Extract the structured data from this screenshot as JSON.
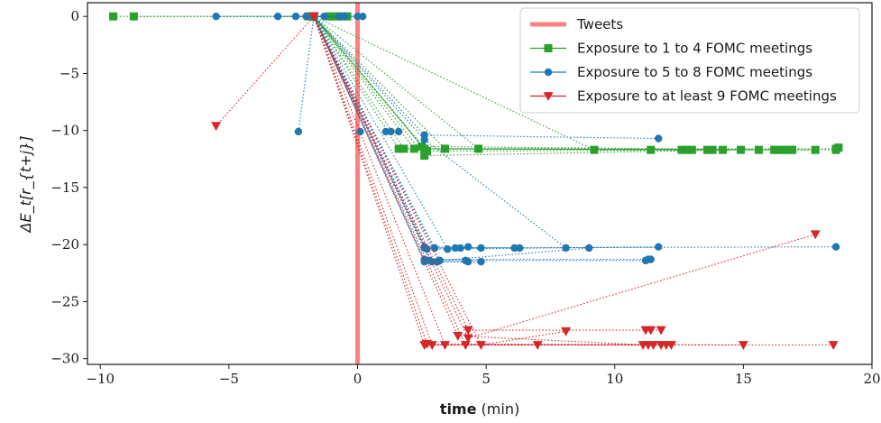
{
  "chart_data": {
    "type": "scatter",
    "xlabel_bold": "time",
    "xlabel_rest": " (min)",
    "ylabel": "ΔE_t[r_{t+j}]",
    "xlim": [
      -10.5,
      20
    ],
    "ylim": [
      -30.5,
      1.2
    ],
    "xticks": [
      -10,
      -5,
      0,
      5,
      10,
      15,
      20
    ],
    "yticks": [
      0,
      -5,
      -10,
      -15,
      -20,
      -25,
      -30
    ],
    "xtick_labels": [
      "−10",
      "−5",
      "0",
      "5",
      "10",
      "15",
      "20"
    ],
    "ytick_labels": [
      "0",
      "−5",
      "−10",
      "−15",
      "−20",
      "−25",
      "−30"
    ],
    "legend_position": "upper-right",
    "tweet_x": 0,
    "tweet_name": "Tweets",
    "tweet_color": "#ff8080",
    "series": [
      {
        "name": "Exposure to 1 to 4 FOMC meetings",
        "color": "#2ca02c",
        "marker": "square",
        "paths": [
          [
            [
              -9.5,
              0
            ],
            [
              -1.7,
              0
            ],
            [
              1.6,
              -11.6
            ],
            [
              18.6,
              -11.6
            ]
          ],
          [
            [
              -8.7,
              0
            ],
            [
              -1.7,
              0
            ],
            [
              1.8,
              -11.6
            ],
            [
              18.6,
              -11.7
            ]
          ],
          [
            [
              -1.9,
              0
            ],
            [
              -1.7,
              0
            ],
            [
              2.2,
              -11.6
            ],
            [
              17.8,
              -11.7
            ]
          ],
          [
            [
              -1.1,
              0
            ],
            [
              -1.7,
              0
            ],
            [
              2.5,
              -11.4
            ],
            [
              16.9,
              -11.7
            ]
          ],
          [
            [
              -0.8,
              0
            ],
            [
              -1.7,
              0
            ],
            [
              2.6,
              -11.6
            ],
            [
              16.5,
              -11.7
            ]
          ],
          [
            [
              -0.6,
              0
            ],
            [
              -1.7,
              0
            ],
            [
              2.7,
              -11.8
            ],
            [
              15.6,
              -11.7
            ]
          ],
          [
            [
              -0.4,
              0
            ],
            [
              -1.7,
              0
            ],
            [
              2.6,
              -12.2
            ],
            [
              14.9,
              -11.7
            ]
          ],
          [
            [
              -1.7,
              0
            ],
            [
              3.4,
              -11.6
            ],
            [
              13.6,
              -11.7
            ]
          ],
          [
            [
              -1.7,
              0
            ],
            [
              4.7,
              -11.6
            ],
            [
              12.6,
              -11.7
            ]
          ],
          [
            [
              -1.7,
              0
            ],
            [
              9.2,
              -11.7
            ],
            [
              11.4,
              -11.7
            ]
          ]
        ],
        "extra_points": [
          [
            12.8,
            -11.7
          ],
          [
            13.0,
            -11.7
          ],
          [
            13.8,
            -11.7
          ],
          [
            14.2,
            -11.7
          ],
          [
            16.2,
            -11.7
          ],
          [
            16.3,
            -11.7
          ],
          [
            16.6,
            -11.7
          ],
          [
            16.8,
            -11.7
          ],
          [
            18.7,
            -11.5
          ]
        ]
      },
      {
        "name": "Exposure to 5 to 8 FOMC meetings",
        "color": "#1f77b4",
        "marker": "circle",
        "paths": [
          [
            [
              -5.5,
              0
            ],
            [
              -1.7,
              0
            ],
            [
              2.6,
              -20.3
            ],
            [
              18.6,
              -20.2
            ]
          ],
          [
            [
              -3.1,
              0
            ],
            [
              -1.7,
              0
            ],
            [
              2.7,
              -20.4
            ],
            [
              11.7,
              -20.2
            ]
          ],
          [
            [
              -2.4,
              0
            ],
            [
              -1.7,
              0
            ],
            [
              2.6,
              -21.3
            ],
            [
              11.3,
              -21.3
            ]
          ],
          [
            [
              -2.0,
              0
            ],
            [
              -1.7,
              0
            ],
            [
              2.8,
              -21.4
            ],
            [
              11.2,
              -21.4
            ]
          ],
          [
            [
              -1.3,
              0
            ],
            [
              -1.7,
              0
            ],
            [
              3.2,
              -21.4
            ],
            [
              9.0,
              -20.3
            ]
          ],
          [
            [
              -0.7,
              0
            ],
            [
              -1.7,
              0
            ],
            [
              2.6,
              -10.4
            ],
            [
              11.7,
              -10.7
            ]
          ],
          [
            [
              -0.5,
              0
            ],
            [
              -1.7,
              0
            ],
            [
              2.6,
              -10.8
            ],
            [
              8.1,
              -20.3
            ]
          ],
          [
            [
              0.0,
              0
            ],
            [
              -1.7,
              0
            ],
            [
              2.6,
              -20.2
            ],
            [
              6.3,
              -20.3
            ]
          ],
          [
            [
              0.2,
              0
            ],
            [
              -1.7,
              0
            ],
            [
              2.6,
              -21.5
            ],
            [
              4.8,
              -21.5
            ]
          ],
          [
            [
              -2.3,
              -10.1
            ],
            [
              -1.7,
              0
            ],
            [
              2.9,
              -21.5
            ],
            [
              4.3,
              -21.5
            ]
          ],
          [
            [
              -1.7,
              0
            ],
            [
              3.0,
              -20.3
            ],
            [
              4.0,
              -20.3
            ]
          ],
          [
            [
              -1.7,
              0
            ],
            [
              3.5,
              -20.4
            ],
            [
              4.8,
              -20.3
            ]
          ]
        ],
        "extra_points": [
          [
            0.1,
            -10.1
          ],
          [
            1.1,
            -10.1
          ],
          [
            1.3,
            -10.1
          ],
          [
            1.6,
            -10.1
          ],
          [
            3.1,
            -21.5
          ],
          [
            3.8,
            -20.3
          ],
          [
            4.2,
            -21.4
          ],
          [
            4.3,
            -20.2
          ],
          [
            6.1,
            -20.3
          ],
          [
            11.4,
            -21.3
          ]
        ]
      },
      {
        "name": "Exposure to at least 9 FOMC meetings",
        "color": "#d62728",
        "marker": "triangle-down",
        "paths": [
          [
            [
              -5.5,
              -9.6
            ],
            [
              -1.7,
              0
            ],
            [
              2.6,
              -28.8
            ],
            [
              18.5,
              -28.8
            ]
          ],
          [
            [
              -1.7,
              0
            ],
            [
              2.7,
              -28.7
            ],
            [
              15.0,
              -28.8
            ]
          ],
          [
            [
              -1.7,
              0
            ],
            [
              2.9,
              -28.8
            ],
            [
              12.0,
              -28.8
            ]
          ],
          [
            [
              -1.7,
              0
            ],
            [
              3.4,
              -28.8
            ],
            [
              11.8,
              -28.8
            ]
          ],
          [
            [
              -1.7,
              0
            ],
            [
              3.9,
              -28.0
            ],
            [
              11.3,
              -28.8
            ]
          ],
          [
            [
              -1.7,
              0
            ],
            [
              4.2,
              -28.8
            ],
            [
              7.0,
              -28.8
            ]
          ],
          [
            [
              -1.7,
              0
            ],
            [
              4.3,
              -27.5
            ],
            [
              11.8,
              -27.5
            ]
          ],
          [
            [
              -1.7,
              0
            ],
            [
              4.3,
              -28.2
            ],
            [
              17.8,
              -19.1
            ]
          ],
          [
            [
              -1.7,
              0
            ],
            [
              4.8,
              -28.8
            ],
            [
              8.1,
              -27.6
            ]
          ]
        ],
        "extra_points": [
          [
            11.1,
            -28.8
          ],
          [
            11.2,
            -27.5
          ],
          [
            11.4,
            -27.5
          ],
          [
            11.5,
            -28.8
          ],
          [
            12.2,
            -28.8
          ]
        ]
      }
    ]
  }
}
